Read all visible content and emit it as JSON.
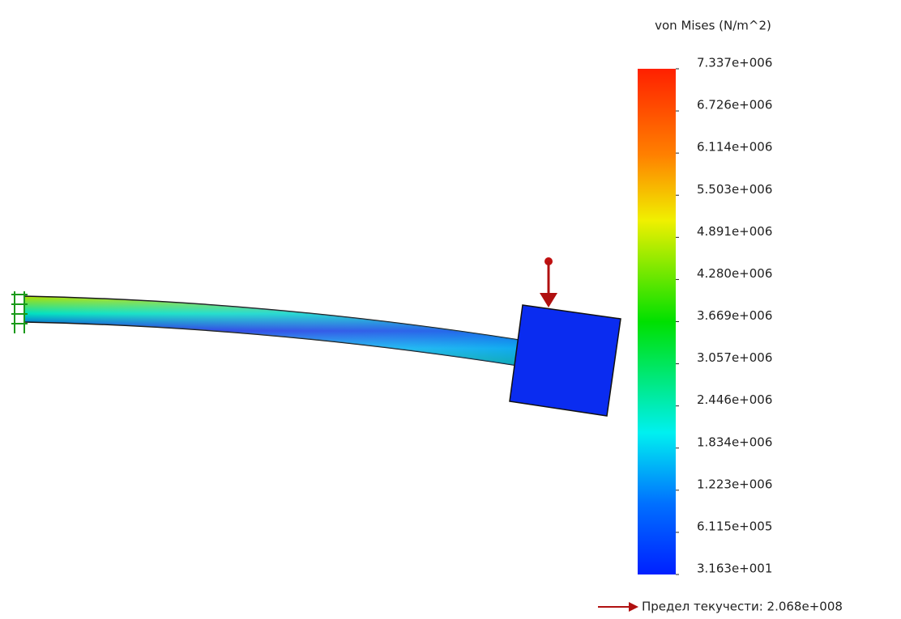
{
  "legend": {
    "title": "von Mises (N/m^2)",
    "labels": [
      "7.337e+006",
      "6.726e+006",
      "6.114e+006",
      "5.503e+006",
      "4.891e+006",
      "4.280e+006",
      "3.669e+006",
      "3.057e+006",
      "2.446e+006",
      "1.834e+006",
      "1.223e+006",
      "6.115e+005",
      "3.163e+001"
    ]
  },
  "yield_strength": "Предел текучести: 2.068e+008"
}
